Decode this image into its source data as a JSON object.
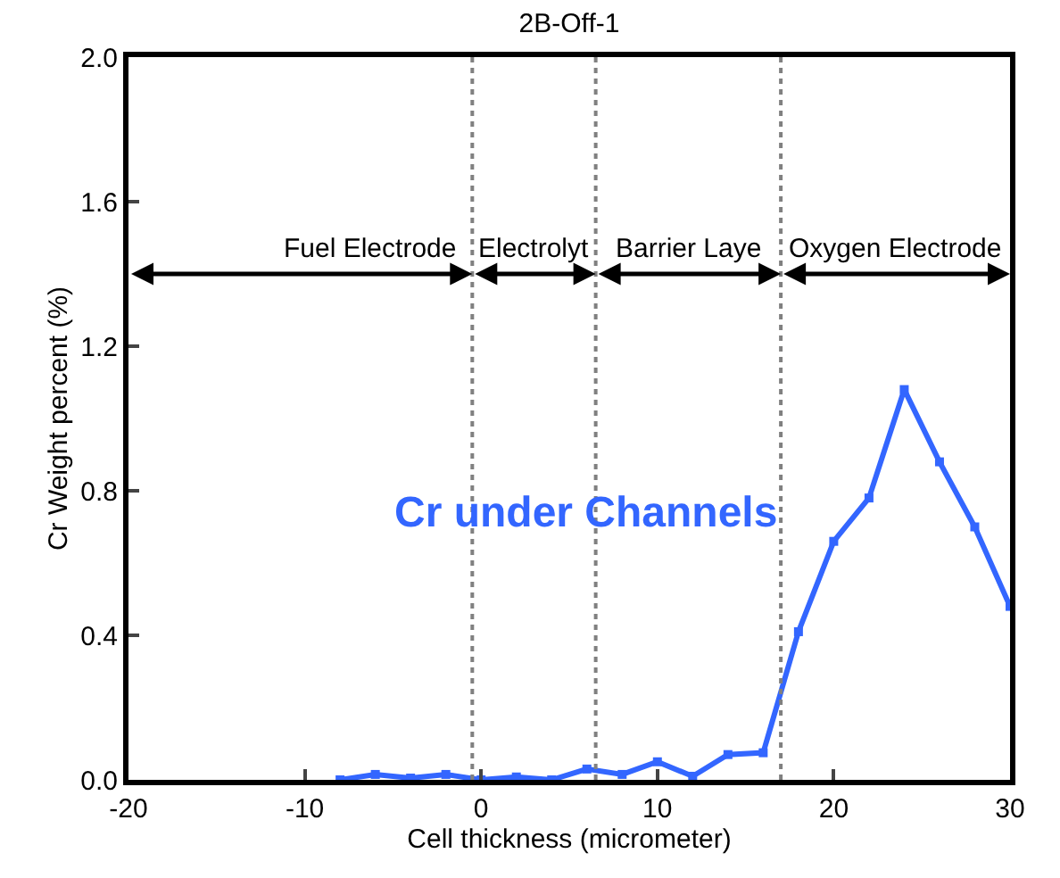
{
  "chart_data": {
    "type": "line",
    "title": "2B-Off-1",
    "xlabel": "Cell thickness (micrometer)",
    "ylabel": "Cr Weight percent (%)",
    "x": [
      -8,
      -6,
      -4,
      -2,
      0,
      2,
      4,
      6,
      8,
      10,
      12,
      14,
      16,
      18,
      20,
      22,
      24,
      26,
      28,
      30
    ],
    "series": [
      {
        "color": "#3366ff",
        "values": [
          0.0,
          0.015,
          0.005,
          0.015,
          0.0,
          0.008,
          0.0,
          0.03,
          0.015,
          0.05,
          0.01,
          0.07,
          0.075,
          0.41,
          0.66,
          0.78,
          1.08,
          0.88,
          0.7,
          0.48
        ]
      }
    ],
    "xlim": [
      -20,
      30
    ],
    "xticks": [
      -20,
      -10,
      0,
      10,
      20,
      30
    ],
    "ylim": [
      0,
      2
    ],
    "yticks": [
      {
        "value": 0,
        "label": "0.0"
      },
      0.4,
      0.8,
      1.2,
      1.6,
      {
        "value": 2,
        "label": "2.0"
      }
    ],
    "ref_lines": [
      {
        "axis": "x",
        "value": -0.5,
        "color": "#808080",
        "line_style": "dotted"
      },
      {
        "axis": "x",
        "value": 6.5,
        "color": "#808080",
        "line_style": "dotted"
      },
      {
        "axis": "x",
        "value": 17,
        "color": "#808080",
        "line_style": "dotted"
      }
    ],
    "annotations": [
      "Fuel Electrode",
      "Electrolyt",
      "Barrier Laye",
      "Oxygen Electrode",
      "Cr under Channels"
    ],
    "grid": false,
    "marker": "square",
    "line_style": "solid"
  }
}
